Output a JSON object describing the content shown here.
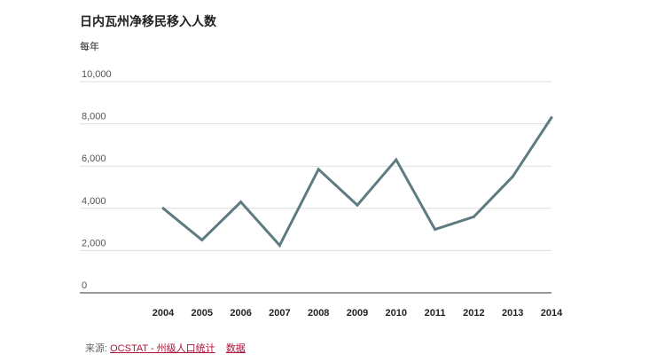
{
  "title": "日内瓦州净移民移入人数",
  "subtitle": "每年",
  "source": {
    "prefix": "来源:",
    "link_text": "OCSTAT - 州级人口统计",
    "data_link_text": "数据"
  },
  "colors": {
    "line": "#5f7b82",
    "grid": "#dddddd",
    "axis": "#333333",
    "link": "#b0123a"
  },
  "chart_data": {
    "type": "line",
    "title": "日内瓦州净移民移入人数",
    "subtitle": "每年",
    "xlabel": "",
    "ylabel": "",
    "x": [
      "2004",
      "2005",
      "2006",
      "2007",
      "2008",
      "2009",
      "2010",
      "2011",
      "2012",
      "2013",
      "2014"
    ],
    "series": [
      {
        "values": [
          4000,
          2500,
          4300,
          2250,
          5850,
          4150,
          6300,
          3000,
          3600,
          5500,
          8300
        ]
      }
    ],
    "y_ticks": [
      "0",
      "2,000",
      "4,000",
      "6,000",
      "8,000",
      "10,000"
    ],
    "ylim": [
      0,
      10000
    ],
    "grid": true,
    "legend": "none"
  }
}
